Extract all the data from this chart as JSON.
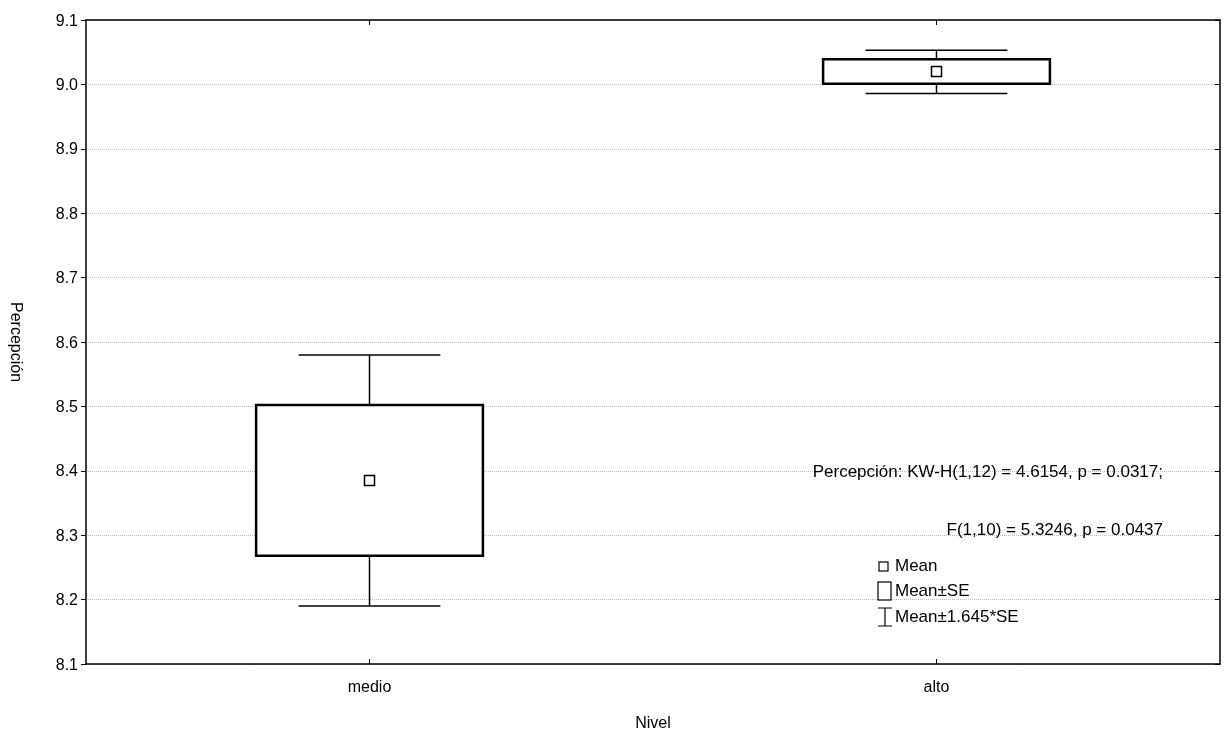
{
  "chart_data": {
    "type": "box",
    "xlabel": "Nivel",
    "ylabel": "Percepción",
    "categories": [
      "medio",
      "alto"
    ],
    "boxes": [
      {
        "low": 8.19,
        "q1": 8.268,
        "median": 8.385,
        "q3": 8.502,
        "high": 8.58
      },
      {
        "low": 8.986,
        "q1": 9.001,
        "median": 9.02,
        "q3": 9.039,
        "high": 9.053
      }
    ],
    "ylim": [
      8.1,
      9.1
    ],
    "yticks": [
      8.1,
      8.2,
      8.3,
      8.4,
      8.5,
      8.6,
      8.7,
      8.8,
      8.9,
      {
        "value": 9,
        "label": "9.0"
      },
      9.1
    ],
    "grid": "y",
    "marker": "square",
    "annotations": [
      "Percepción:  KW-H(1,12) = 4.6154, p = 0.0317;",
      "F(1,10) = 5.3246, p = 0.0437",
      "Mean",
      "Mean±SE",
      "Mean±1.645*SE"
    ]
  }
}
